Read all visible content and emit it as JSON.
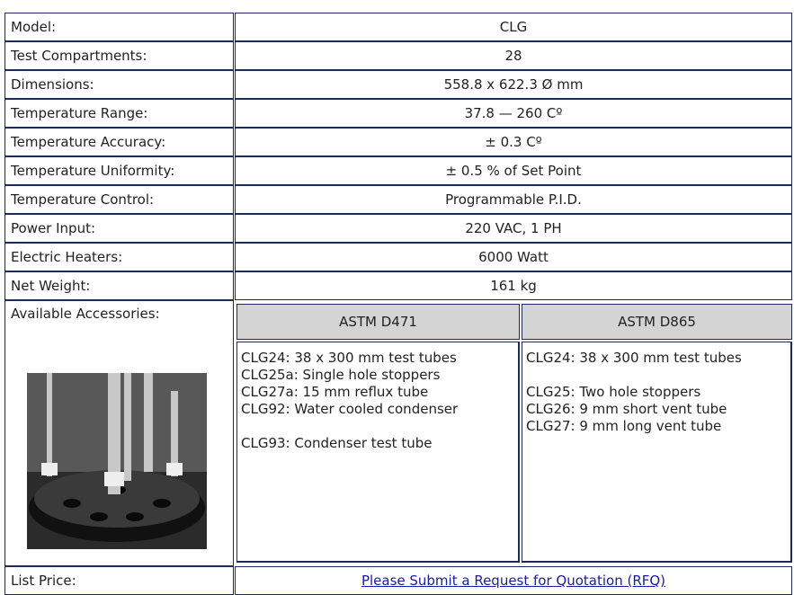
{
  "table": {
    "rows": [
      [
        "Model:",
        "CLG"
      ],
      [
        "Test Compartments:",
        "28"
      ],
      [
        "Dimensions:",
        "558.8 x 622.3 Ø mm"
      ],
      [
        "Temperature Range:",
        "37.8 — 260 Cº"
      ],
      [
        "Temperature Accuracy:",
        "± 0.3 Cº"
      ],
      [
        "Temperature Uniformity:",
        "± 0.5 % of Set Point"
      ],
      [
        "Temperature Control:",
        "Programmable P.I.D."
      ],
      [
        "Power Input:",
        "220 VAC, 1 PH"
      ],
      [
        "Electric Heaters:",
        "6000 Watt"
      ],
      [
        "Net Weight:",
        "161 kg"
      ]
    ],
    "accessories": {
      "label": "Available Accessories:",
      "columns": [
        {
          "header": "ASTM D471",
          "items": [
            "CLG24: 38 x 300 mm test tubes",
            "CLG25a: Single hole stoppers",
            "CLG27a: 15 mm reflux tube",
            "CLG92: Water cooled condenser",
            "CLG93: Condenser test tube"
          ]
        },
        {
          "header": "ASTM D865",
          "items": [
            "CLG24: 38 x 300 mm test tubes",
            "CLG25: Two hole stoppers",
            "CLG26: 9 mm short vent tube",
            "CLG27: 9 mm long vent tube"
          ]
        }
      ]
    },
    "price": {
      "label": "List Price:",
      "link": "Please Submit a Request for Quotation (RFQ)"
    }
  }
}
